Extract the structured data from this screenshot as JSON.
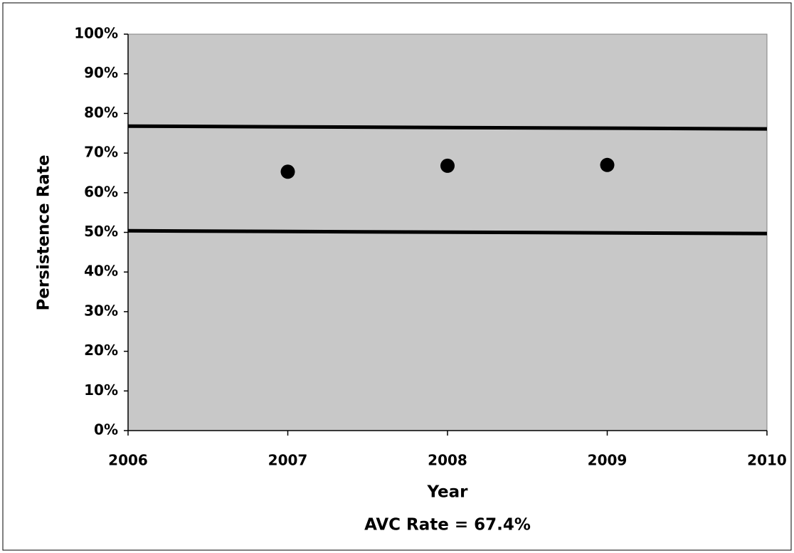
{
  "chart_data": {
    "type": "scatter",
    "xlabel": "Year",
    "ylabel": "Persistence Rate",
    "annotation": "AVC Rate = 67.4%",
    "x": [
      2007,
      2008,
      2009
    ],
    "values": [
      65.3,
      66.8,
      67.0
    ],
    "color": "#000000",
    "lines": [
      {
        "x": [
          2006,
          2010
        ],
        "values": [
          76.8,
          76.1
        ],
        "color": "#000000"
      },
      {
        "x": [
          2006,
          2010
        ],
        "values": [
          50.4,
          49.7
        ],
        "color": "#000000"
      }
    ],
    "xlim": [
      2006,
      2010
    ],
    "xticks": [
      2006,
      2007,
      2008,
      2009,
      2010
    ],
    "ylim": [
      0,
      100
    ],
    "yticks": [
      {
        "value": 0,
        "label": "0%"
      },
      {
        "value": 10,
        "label": "10%"
      },
      {
        "value": 20,
        "label": "20%"
      },
      {
        "value": 30,
        "label": "30%"
      },
      {
        "value": 40,
        "label": "40%"
      },
      {
        "value": 50,
        "label": "50%"
      },
      {
        "value": 60,
        "label": "60%"
      },
      {
        "value": 70,
        "label": "70%"
      },
      {
        "value": 80,
        "label": "80%"
      },
      {
        "value": 90,
        "label": "90%"
      },
      {
        "value": 100,
        "label": "100%"
      }
    ],
    "plot_background": "#c8c8c8"
  }
}
